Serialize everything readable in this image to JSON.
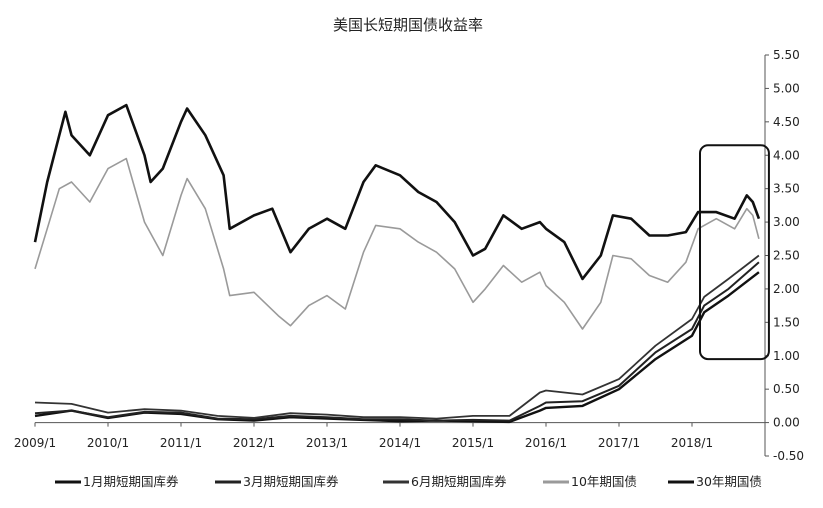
{
  "chart_data": {
    "type": "line",
    "title": "美国长短期国债收益率",
    "x_ticks": [
      "2009/1",
      "2010/1",
      "2011/1",
      "2012/1",
      "2013/1",
      "2014/1",
      "2015/1",
      "2016/1",
      "2017/1",
      "2018/1"
    ],
    "y_ticks": [
      "-0.50",
      "0.00",
      "0.50",
      "1.00",
      "1.50",
      "2.00",
      "2.50",
      "3.00",
      "3.50",
      "4.00",
      "4.50",
      "5.00",
      "5.50"
    ],
    "ylim": [
      -0.5,
      5.5
    ],
    "y_axis_position": "right",
    "legend_position": "bottom",
    "grid": false,
    "highlight_box": {
      "x_range": [
        "2018/1",
        "2018/12"
      ],
      "y_range": [
        0.95,
        4.15
      ]
    },
    "series": [
      {
        "name": "1月期短期国库券",
        "color": "#111111",
        "points": [
          [
            "2009/1",
            0.1
          ],
          [
            "2009/7",
            0.18
          ],
          [
            "2010/1",
            0.07
          ],
          [
            "2010/7",
            0.15
          ],
          [
            "2011/1",
            0.13
          ],
          [
            "2011/7",
            0.05
          ],
          [
            "2012/1",
            0.03
          ],
          [
            "2012/7",
            0.08
          ],
          [
            "2013/1",
            0.06
          ],
          [
            "2013/7",
            0.04
          ],
          [
            "2014/1",
            0.02
          ],
          [
            "2014/7",
            0.03
          ],
          [
            "2015/1",
            0.02
          ],
          [
            "2015/7",
            0.01
          ],
          [
            "2015/12",
            0.18
          ],
          [
            "2016/1",
            0.22
          ],
          [
            "2016/7",
            0.25
          ],
          [
            "2017/1",
            0.5
          ],
          [
            "2017/7",
            0.95
          ],
          [
            "2018/1",
            1.3
          ],
          [
            "2018/3",
            1.65
          ],
          [
            "2018/7",
            1.9
          ],
          [
            "2018/12",
            2.25
          ]
        ]
      },
      {
        "name": "3月期短期国库券",
        "color": "#222222",
        "points": [
          [
            "2009/1",
            0.14
          ],
          [
            "2009/7",
            0.18
          ],
          [
            "2010/1",
            0.08
          ],
          [
            "2010/7",
            0.16
          ],
          [
            "2011/1",
            0.15
          ],
          [
            "2011/7",
            0.06
          ],
          [
            "2012/1",
            0.05
          ],
          [
            "2012/7",
            0.1
          ],
          [
            "2013/1",
            0.08
          ],
          [
            "2013/7",
            0.05
          ],
          [
            "2014/1",
            0.05
          ],
          [
            "2014/7",
            0.03
          ],
          [
            "2015/1",
            0.04
          ],
          [
            "2015/7",
            0.03
          ],
          [
            "2015/12",
            0.25
          ],
          [
            "2016/1",
            0.3
          ],
          [
            "2016/7",
            0.32
          ],
          [
            "2017/1",
            0.55
          ],
          [
            "2017/7",
            1.05
          ],
          [
            "2018/1",
            1.4
          ],
          [
            "2018/3",
            1.75
          ],
          [
            "2018/7",
            2.0
          ],
          [
            "2018/12",
            2.4
          ]
        ]
      },
      {
        "name": "6月期短期国库券",
        "color": "#333333",
        "points": [
          [
            "2009/1",
            0.3
          ],
          [
            "2009/7",
            0.28
          ],
          [
            "2010/1",
            0.15
          ],
          [
            "2010/7",
            0.2
          ],
          [
            "2011/1",
            0.18
          ],
          [
            "2011/7",
            0.1
          ],
          [
            "2012/1",
            0.07
          ],
          [
            "2012/7",
            0.14
          ],
          [
            "2013/1",
            0.12
          ],
          [
            "2013/7",
            0.08
          ],
          [
            "2014/1",
            0.08
          ],
          [
            "2014/7",
            0.06
          ],
          [
            "2015/1",
            0.1
          ],
          [
            "2015/7",
            0.1
          ],
          [
            "2015/12",
            0.45
          ],
          [
            "2016/1",
            0.48
          ],
          [
            "2016/7",
            0.42
          ],
          [
            "2017/1",
            0.65
          ],
          [
            "2017/7",
            1.15
          ],
          [
            "2018/1",
            1.55
          ],
          [
            "2018/3",
            1.88
          ],
          [
            "2018/7",
            2.15
          ],
          [
            "2018/12",
            2.5
          ]
        ]
      },
      {
        "name": "10年期国债",
        "color": "#9a9a9a",
        "points": [
          [
            "2009/1",
            2.3
          ],
          [
            "2009/3",
            2.9
          ],
          [
            "2009/5",
            3.5
          ],
          [
            "2009/7",
            3.6
          ],
          [
            "2009/10",
            3.3
          ],
          [
            "2010/1",
            3.8
          ],
          [
            "2010/4",
            3.95
          ],
          [
            "2010/7",
            3.0
          ],
          [
            "2010/10",
            2.5
          ],
          [
            "2011/1",
            3.4
          ],
          [
            "2011/2",
            3.65
          ],
          [
            "2011/5",
            3.2
          ],
          [
            "2011/8",
            2.3
          ],
          [
            "2011/9",
            1.9
          ],
          [
            "2012/1",
            1.95
          ],
          [
            "2012/5",
            1.6
          ],
          [
            "2012/7",
            1.45
          ],
          [
            "2012/10",
            1.75
          ],
          [
            "2013/1",
            1.9
          ],
          [
            "2013/4",
            1.7
          ],
          [
            "2013/7",
            2.55
          ],
          [
            "2013/9",
            2.95
          ],
          [
            "2014/1",
            2.9
          ],
          [
            "2014/4",
            2.7
          ],
          [
            "2014/7",
            2.55
          ],
          [
            "2014/10",
            2.3
          ],
          [
            "2015/1",
            1.8
          ],
          [
            "2015/3",
            2.0
          ],
          [
            "2015/6",
            2.35
          ],
          [
            "2015/9",
            2.1
          ],
          [
            "2015/12",
            2.25
          ],
          [
            "2016/1",
            2.05
          ],
          [
            "2016/4",
            1.8
          ],
          [
            "2016/7",
            1.4
          ],
          [
            "2016/10",
            1.8
          ],
          [
            "2016/12",
            2.5
          ],
          [
            "2017/3",
            2.45
          ],
          [
            "2017/6",
            2.2
          ],
          [
            "2017/9",
            2.1
          ],
          [
            "2017/12",
            2.4
          ],
          [
            "2018/2",
            2.9
          ],
          [
            "2018/5",
            3.05
          ],
          [
            "2018/8",
            2.9
          ],
          [
            "2018/10",
            3.2
          ],
          [
            "2018/11",
            3.1
          ],
          [
            "2018/12",
            2.75
          ]
        ]
      },
      {
        "name": "30年期国债",
        "color": "#111111",
        "points": [
          [
            "2009/1",
            2.7
          ],
          [
            "2009/3",
            3.6
          ],
          [
            "2009/5",
            4.3
          ],
          [
            "2009/6",
            4.65
          ],
          [
            "2009/7",
            4.3
          ],
          [
            "2009/10",
            4.0
          ],
          [
            "2010/1",
            4.6
          ],
          [
            "2010/4",
            4.75
          ],
          [
            "2010/7",
            4.0
          ],
          [
            "2010/8",
            3.6
          ],
          [
            "2010/10",
            3.8
          ],
          [
            "2011/1",
            4.5
          ],
          [
            "2011/2",
            4.7
          ],
          [
            "2011/5",
            4.3
          ],
          [
            "2011/8",
            3.7
          ],
          [
            "2011/9",
            2.9
          ],
          [
            "2012/1",
            3.1
          ],
          [
            "2012/4",
            3.2
          ],
          [
            "2012/7",
            2.55
          ],
          [
            "2012/10",
            2.9
          ],
          [
            "2013/1",
            3.05
          ],
          [
            "2013/4",
            2.9
          ],
          [
            "2013/7",
            3.6
          ],
          [
            "2013/9",
            3.85
          ],
          [
            "2014/1",
            3.7
          ],
          [
            "2014/4",
            3.45
          ],
          [
            "2014/7",
            3.3
          ],
          [
            "2014/10",
            3.0
          ],
          [
            "2015/1",
            2.5
          ],
          [
            "2015/3",
            2.6
          ],
          [
            "2015/6",
            3.1
          ],
          [
            "2015/9",
            2.9
          ],
          [
            "2015/12",
            3.0
          ],
          [
            "2016/1",
            2.9
          ],
          [
            "2016/4",
            2.7
          ],
          [
            "2016/7",
            2.15
          ],
          [
            "2016/10",
            2.5
          ],
          [
            "2016/12",
            3.1
          ],
          [
            "2017/3",
            3.05
          ],
          [
            "2017/6",
            2.8
          ],
          [
            "2017/9",
            2.8
          ],
          [
            "2017/12",
            2.85
          ],
          [
            "2018/2",
            3.15
          ],
          [
            "2018/5",
            3.15
          ],
          [
            "2018/8",
            3.05
          ],
          [
            "2018/10",
            3.4
          ],
          [
            "2018/11",
            3.3
          ],
          [
            "2018/12",
            3.05
          ]
        ]
      }
    ]
  }
}
